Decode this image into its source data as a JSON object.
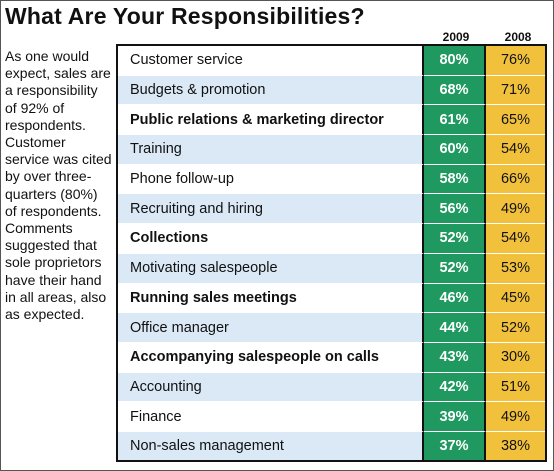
{
  "title": "What Are Your Responsibilities?",
  "body_text": "As one would expect, sales are a responsibility of 92% of respondents. Customer service was cited by over three-quarters (80%) of respondents. Comments suggested that sole proprietors have their hand in all areas, also as expected.",
  "colors": {
    "col_2009": "#1f9960",
    "col_2008": "#f2c13c",
    "row_alt": "#dbe9f7"
  },
  "chart_data": {
    "type": "table",
    "columns": [
      "2009",
      "2008"
    ],
    "rows": [
      {
        "label": "Customer service",
        "v2009": "80%",
        "v2008": "76%",
        "bold": false
      },
      {
        "label": "Budgets & promotion",
        "v2009": "68%",
        "v2008": "71%",
        "bold": false
      },
      {
        "label": "Public relations & marketing director",
        "v2009": "61%",
        "v2008": "65%",
        "bold": true
      },
      {
        "label": "Training",
        "v2009": "60%",
        "v2008": "54%",
        "bold": false
      },
      {
        "label": "Phone follow-up",
        "v2009": "58%",
        "v2008": "66%",
        "bold": false
      },
      {
        "label": "Recruiting and hiring",
        "v2009": "56%",
        "v2008": "49%",
        "bold": false
      },
      {
        "label": "Collections",
        "v2009": "52%",
        "v2008": "54%",
        "bold": true
      },
      {
        "label": "Motivating salespeople",
        "v2009": "52%",
        "v2008": "53%",
        "bold": false
      },
      {
        "label": "Running sales meetings",
        "v2009": "46%",
        "v2008": "45%",
        "bold": true
      },
      {
        "label": "Office manager",
        "v2009": "44%",
        "v2008": "52%",
        "bold": false
      },
      {
        "label": "Accompanying salespeople on calls",
        "v2009": "43%",
        "v2008": "30%",
        "bold": true
      },
      {
        "label": "Accounting",
        "v2009": "42%",
        "v2008": "51%",
        "bold": false
      },
      {
        "label": "Finance",
        "v2009": "39%",
        "v2008": "49%",
        "bold": false
      },
      {
        "label": "Non-sales management",
        "v2009": "37%",
        "v2008": "38%",
        "bold": false
      }
    ]
  }
}
